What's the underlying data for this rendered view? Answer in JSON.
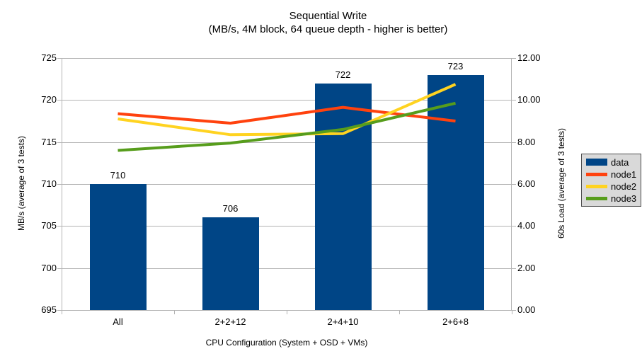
{
  "chart_data": {
    "type": "bar+line",
    "title": "Sequential Write",
    "subtitle": "(MB/s, 4M block, 64 queue depth - higher is better)",
    "categories": [
      "All",
      "2+2+12",
      "2+4+10",
      "2+6+8"
    ],
    "series": [
      {
        "name": "data",
        "type": "bar",
        "axis": "left",
        "color": "#004586",
        "values": [
          710,
          706,
          722,
          723
        ],
        "value_labels": [
          "710",
          "706",
          "722",
          "723"
        ]
      },
      {
        "name": "node1",
        "type": "line",
        "axis": "right",
        "color": "#ff420e",
        "values": [
          9.35,
          8.9,
          9.65,
          9.0
        ]
      },
      {
        "name": "node2",
        "type": "line",
        "axis": "right",
        "color": "#ffd320",
        "values": [
          9.1,
          8.35,
          8.4,
          10.75
        ]
      },
      {
        "name": "node3",
        "type": "line",
        "axis": "right",
        "color": "#579d1c",
        "values": [
          7.6,
          7.95,
          8.6,
          9.85
        ]
      }
    ],
    "left_axis": {
      "title": "MB/s (average of 3 tests)",
      "min": 695,
      "max": 725,
      "step": 5,
      "tick_labels": [
        "695",
        "700",
        "705",
        "710",
        "715",
        "720",
        "725"
      ]
    },
    "right_axis": {
      "title": "60s Load (average of 3 tests)",
      "min": 0,
      "max": 12,
      "step": 2,
      "tick_labels": [
        "0.00",
        "2.00",
        "4.00",
        "6.00",
        "8.00",
        "10.00",
        "12.00"
      ]
    },
    "x_axis": {
      "title": "CPU Configuration (System + OSD + VMs)"
    },
    "legend": {
      "position": "right",
      "entries": [
        "data",
        "node1",
        "node2",
        "node3"
      ]
    },
    "grid": "horizontal",
    "colors": {
      "grid": "#b3b3b3",
      "axis": "#b3b3b3",
      "text": "#000000",
      "legend_bg": "#d9d9d9",
      "legend_border": "#4d4d4d",
      "background": "#ffffff"
    }
  }
}
